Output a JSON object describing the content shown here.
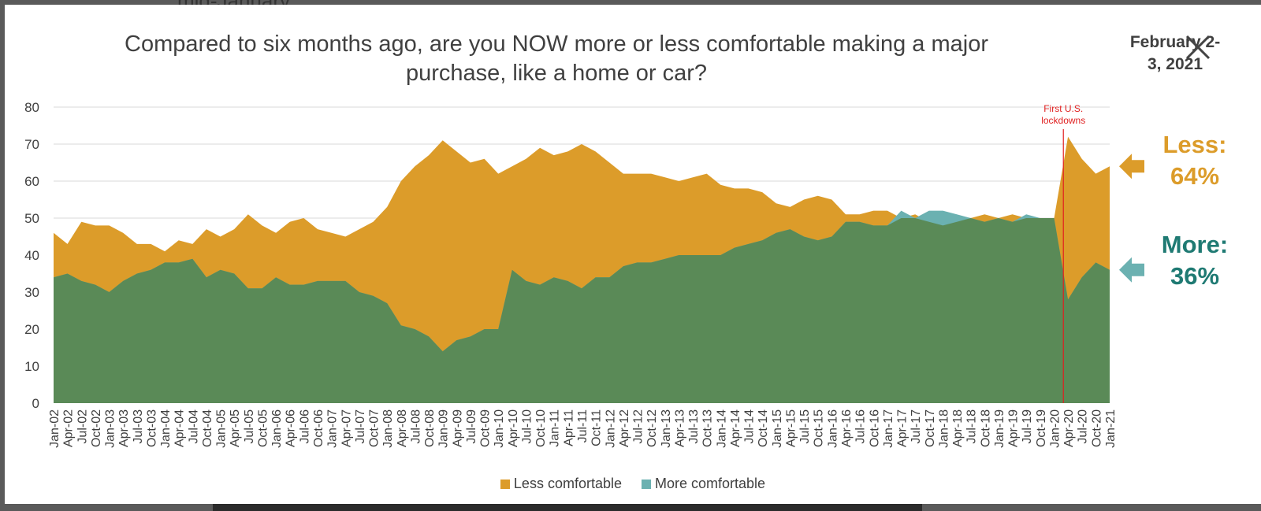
{
  "backdrop": {
    "partial_text": "mid-January."
  },
  "dialog": {
    "title": "Compared to six months ago, are you NOW more or less comfortable making a major purchase, like a home or car?",
    "date_label": "February 2-3, 2021",
    "close_icon": "close-icon"
  },
  "colors": {
    "less": "#DC9C2A",
    "more_overlay": "#6BB1B1",
    "more_base": "#5A8A57",
    "event_line": "#E02020"
  },
  "chart_data": {
    "type": "area",
    "ylim": [
      0,
      80
    ],
    "yticks": [
      0,
      10,
      20,
      30,
      40,
      50,
      60,
      70,
      80
    ],
    "x_tick_labels": [
      "Jan-02",
      "Apr-02",
      "Jul-02",
      "Oct-02",
      "Jan-03",
      "Apr-03",
      "Jul-03",
      "Oct-03",
      "Jan-04",
      "Apr-04",
      "Jul-04",
      "Oct-04",
      "Jan-05",
      "Apr-05",
      "Jul-05",
      "Oct-05",
      "Jan-06",
      "Apr-06",
      "Jul-06",
      "Oct-06",
      "Jan-07",
      "Apr-07",
      "Jul-07",
      "Oct-07",
      "Jan-08",
      "Apr-08",
      "Jul-08",
      "Oct-08",
      "Jan-09",
      "Apr-09",
      "Jul-09",
      "Oct-09",
      "Jan-10",
      "Apr-10",
      "Jul-10",
      "Oct-10",
      "Jan-11",
      "Apr-11",
      "Jul-11",
      "Oct-11",
      "Jan-12",
      "Apr-12",
      "Jul-12",
      "Oct-12",
      "Jan-13",
      "Apr-13",
      "Jul-13",
      "Oct-13",
      "Jan-14",
      "Apr-14",
      "Jul-14",
      "Oct-14",
      "Jan-15",
      "Apr-15",
      "Jul-15",
      "Oct-15",
      "Jan-16",
      "Apr-16",
      "Jul-16",
      "Oct-16",
      "Jan-17",
      "Apr-17",
      "Jul-17",
      "Oct-17",
      "Jan-18",
      "Apr-18",
      "Jul-18",
      "Oct-18",
      "Jan-19",
      "Apr-19",
      "Jul-19",
      "Oct-19",
      "Jan-20",
      "Apr-20",
      "Jul-20",
      "Oct-20",
      "Jan-21"
    ],
    "grid": true,
    "legend_position": "bottom-center",
    "series": [
      {
        "name": "Less comfortable",
        "color": "#DC9C2A",
        "points": [
          [
            "Jan-02",
            46
          ],
          [
            "Apr-02",
            43
          ],
          [
            "Jul-02",
            49
          ],
          [
            "Oct-02",
            48
          ],
          [
            "Jan-03",
            48
          ],
          [
            "Apr-03",
            46
          ],
          [
            "Jul-03",
            43
          ],
          [
            "Oct-03",
            43
          ],
          [
            "Jan-04",
            41
          ],
          [
            "Apr-04",
            44
          ],
          [
            "Jul-04",
            43
          ],
          [
            "Oct-04",
            47
          ],
          [
            "Jan-05",
            45
          ],
          [
            "Apr-05",
            47
          ],
          [
            "Jul-05",
            51
          ],
          [
            "Oct-05",
            48
          ],
          [
            "Jan-06",
            46
          ],
          [
            "Apr-06",
            49
          ],
          [
            "Jul-06",
            50
          ],
          [
            "Oct-06",
            47
          ],
          [
            "Jan-07",
            46
          ],
          [
            "Apr-07",
            45
          ],
          [
            "Jul-07",
            47
          ],
          [
            "Oct-07",
            49
          ],
          [
            "Jan-08",
            53
          ],
          [
            "Apr-08",
            60
          ],
          [
            "Jul-08",
            64
          ],
          [
            "Oct-08",
            67
          ],
          [
            "Jan-09",
            71
          ],
          [
            "Apr-09",
            68
          ],
          [
            "Jul-09",
            65
          ],
          [
            "Oct-09",
            66
          ],
          [
            "Jan-10",
            62
          ],
          [
            "Apr-10",
            64
          ],
          [
            "Jul-10",
            66
          ],
          [
            "Oct-10",
            69
          ],
          [
            "Jan-11",
            67
          ],
          [
            "Apr-11",
            68
          ],
          [
            "Jul-11",
            70
          ],
          [
            "Oct-11",
            68
          ],
          [
            "Jan-12",
            65
          ],
          [
            "Apr-12",
            62
          ],
          [
            "Jul-12",
            62
          ],
          [
            "Oct-12",
            62
          ],
          [
            "Jan-13",
            61
          ],
          [
            "Apr-13",
            60
          ],
          [
            "Jul-13",
            61
          ],
          [
            "Oct-13",
            62
          ],
          [
            "Jan-14",
            59
          ],
          [
            "Apr-14",
            58
          ],
          [
            "Jul-14",
            58
          ],
          [
            "Oct-14",
            57
          ],
          [
            "Jan-15",
            54
          ],
          [
            "Apr-15",
            53
          ],
          [
            "Jul-15",
            55
          ],
          [
            "Oct-15",
            56
          ],
          [
            "Jan-16",
            55
          ],
          [
            "Apr-16",
            51
          ],
          [
            "Jul-16",
            51
          ],
          [
            "Oct-16",
            52
          ],
          [
            "Jan-17",
            52
          ],
          [
            "Apr-17",
            50
          ],
          [
            "Jul-17",
            51
          ],
          [
            "Oct-17",
            49
          ],
          [
            "Jan-18",
            48
          ],
          [
            "Apr-18",
            49
          ],
          [
            "Jul-18",
            50
          ],
          [
            "Oct-18",
            51
          ],
          [
            "Jan-19",
            50
          ],
          [
            "Apr-19",
            51
          ],
          [
            "Jul-19",
            50
          ],
          [
            "Oct-19",
            50
          ],
          [
            "Jan-20",
            50
          ],
          [
            "Apr-20",
            72
          ],
          [
            "Jul-20",
            66
          ],
          [
            "Oct-20",
            62
          ],
          [
            "Jan-21",
            64
          ]
        ]
      },
      {
        "name": "More comfortable",
        "color": "#6BB1B1",
        "points": [
          [
            "Jan-02",
            34
          ],
          [
            "Apr-02",
            35
          ],
          [
            "Jul-02",
            33
          ],
          [
            "Oct-02",
            32
          ],
          [
            "Jan-03",
            30
          ],
          [
            "Apr-03",
            33
          ],
          [
            "Jul-03",
            35
          ],
          [
            "Oct-03",
            36
          ],
          [
            "Jan-04",
            38
          ],
          [
            "Apr-04",
            38
          ],
          [
            "Jul-04",
            39
          ],
          [
            "Oct-04",
            34
          ],
          [
            "Jan-05",
            36
          ],
          [
            "Apr-05",
            35
          ],
          [
            "Jul-05",
            31
          ],
          [
            "Oct-05",
            31
          ],
          [
            "Jan-06",
            34
          ],
          [
            "Apr-06",
            32
          ],
          [
            "Jul-06",
            32
          ],
          [
            "Oct-06",
            33
          ],
          [
            "Jan-07",
            33
          ],
          [
            "Apr-07",
            33
          ],
          [
            "Jul-07",
            30
          ],
          [
            "Oct-07",
            29
          ],
          [
            "Jan-08",
            27
          ],
          [
            "Apr-08",
            21
          ],
          [
            "Jul-08",
            20
          ],
          [
            "Oct-08",
            18
          ],
          [
            "Jan-09",
            14
          ],
          [
            "Apr-09",
            17
          ],
          [
            "Jul-09",
            18
          ],
          [
            "Oct-09",
            20
          ],
          [
            "Jan-10",
            20
          ],
          [
            "Apr-10",
            36
          ],
          [
            "Jul-10",
            33
          ],
          [
            "Oct-10",
            32
          ],
          [
            "Jan-11",
            34
          ],
          [
            "Apr-11",
            33
          ],
          [
            "Jul-11",
            31
          ],
          [
            "Oct-11",
            34
          ],
          [
            "Jan-12",
            34
          ],
          [
            "Apr-12",
            37
          ],
          [
            "Jul-12",
            38
          ],
          [
            "Oct-12",
            38
          ],
          [
            "Jan-13",
            39
          ],
          [
            "Apr-13",
            40
          ],
          [
            "Jul-13",
            40
          ],
          [
            "Oct-13",
            40
          ],
          [
            "Jan-14",
            40
          ],
          [
            "Apr-14",
            42
          ],
          [
            "Jul-14",
            43
          ],
          [
            "Oct-14",
            44
          ],
          [
            "Jan-15",
            46
          ],
          [
            "Apr-15",
            47
          ],
          [
            "Jul-15",
            45
          ],
          [
            "Oct-15",
            44
          ],
          [
            "Jan-16",
            45
          ],
          [
            "Apr-16",
            49
          ],
          [
            "Jul-16",
            49
          ],
          [
            "Oct-16",
            48
          ],
          [
            "Jan-17",
            48
          ],
          [
            "Apr-17",
            52
          ],
          [
            "Jul-17",
            50
          ],
          [
            "Oct-17",
            52
          ],
          [
            "Jan-18",
            52
          ],
          [
            "Apr-18",
            51
          ],
          [
            "Jul-18",
            50
          ],
          [
            "Oct-18",
            49
          ],
          [
            "Jan-19",
            50
          ],
          [
            "Apr-19",
            49
          ],
          [
            "Jul-19",
            51
          ],
          [
            "Oct-19",
            50
          ],
          [
            "Jan-20",
            50
          ],
          [
            "Apr-20",
            28
          ],
          [
            "Jul-20",
            34
          ],
          [
            "Oct-20",
            38
          ],
          [
            "Jan-21",
            36
          ]
        ]
      }
    ],
    "annotations": [
      {
        "text": "First U.S. lockdowns",
        "x": "Mar-20",
        "color": "#E02020"
      }
    ],
    "end_labels": {
      "less": {
        "label": "Less:",
        "value": "64%"
      },
      "more": {
        "label": "More:",
        "value": "36%"
      }
    }
  }
}
